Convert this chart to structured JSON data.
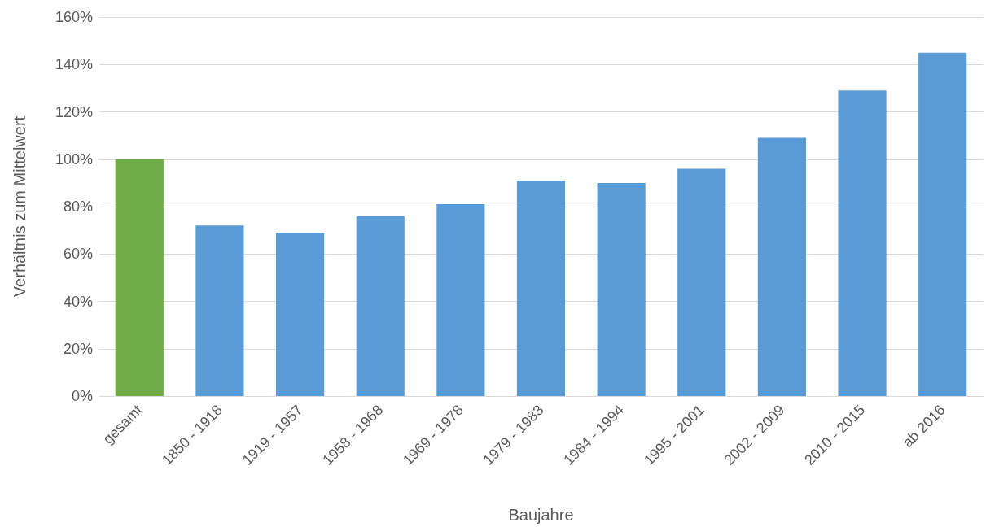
{
  "chart_data": {
    "type": "bar",
    "xlabel": "Baujahre",
    "ylabel": "Verhältnis zum Mittelwert",
    "categories": [
      "gesamt",
      "1850 - 1918",
      "1919 - 1957",
      "1958 - 1968",
      "1969 - 1978",
      "1979 - 1983",
      "1984 - 1994",
      "1995 - 2001",
      "2002 - 2009",
      "2010 - 2015",
      "ab 2016"
    ],
    "values": [
      100,
      72,
      69,
      76,
      81,
      91,
      90,
      96,
      109,
      129,
      145
    ],
    "colors": [
      "#70ad47",
      "#5b9bd5",
      "#5b9bd5",
      "#5b9bd5",
      "#5b9bd5",
      "#5b9bd5",
      "#5b9bd5",
      "#5b9bd5",
      "#5b9bd5",
      "#5b9bd5",
      "#5b9bd5"
    ],
    "ylim": [
      0,
      160
    ],
    "yticks": [
      {
        "value": 0,
        "label": "0%"
      },
      {
        "value": 20,
        "label": "20%"
      },
      {
        "value": 40,
        "label": "40%"
      },
      {
        "value": 60,
        "label": "60%"
      },
      {
        "value": 80,
        "label": "80%"
      },
      {
        "value": 100,
        "label": "100%"
      },
      {
        "value": 120,
        "label": "120%"
      },
      {
        "value": 140,
        "label": "140%"
      },
      {
        "value": 160,
        "label": "160%"
      }
    ],
    "grid": "y"
  }
}
